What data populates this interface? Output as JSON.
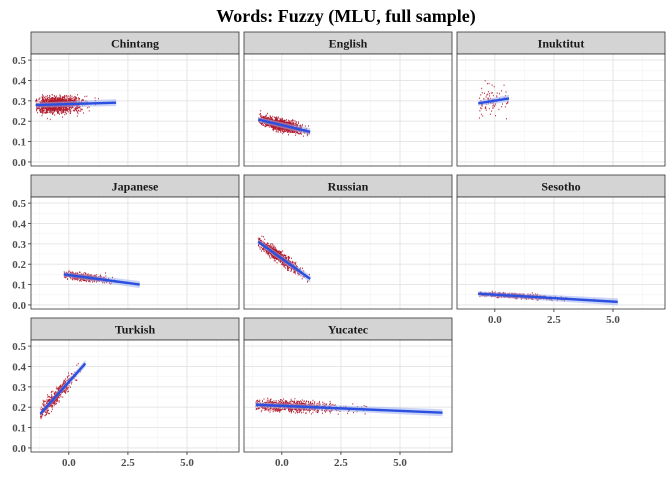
{
  "chart_data": {
    "type": "scatter",
    "title": "Words: Fuzzy (MLU, full sample)",
    "xlabel": "",
    "ylabel": "",
    "x_ticks": [
      0.0,
      2.5,
      5.0
    ],
    "x_tick_labels": [
      "0.0",
      "2.5",
      "5.0"
    ],
    "y_ticks": [
      0.0,
      0.1,
      0.2,
      0.3,
      0.4,
      0.5
    ],
    "y_tick_labels": [
      "0.0",
      "0.1",
      "0.2",
      "0.3",
      "0.4",
      "0.5"
    ],
    "xlim": [
      -1.6,
      7.2
    ],
    "ylim": [
      -0.02,
      0.53
    ],
    "grid": true,
    "colors": {
      "points": "#b2182b",
      "fit": "#2b50e0",
      "ribbon": "#9fb0f0",
      "strip": "#d4d4d4"
    },
    "panels": [
      {
        "name": "Chintang",
        "fit": {
          "x": [
            -1.4,
            2.0
          ],
          "y": [
            0.279,
            0.291
          ]
        },
        "cloud": {
          "x_center": -0.5,
          "x_spread": 0.5,
          "x_min": -1.4,
          "x_max": 1.8,
          "y_spread": 0.018,
          "n": 1500
        }
      },
      {
        "name": "English",
        "fit": {
          "x": [
            -1.0,
            1.2
          ],
          "y": [
            0.208,
            0.148
          ]
        },
        "cloud": {
          "x_center": 0.0,
          "x_spread": 0.45,
          "x_min": -1.0,
          "x_max": 1.2,
          "y_spread": 0.013,
          "n": 1500
        }
      },
      {
        "name": "Inuktitut",
        "fit": {
          "x": [
            -0.7,
            0.6
          ],
          "y": [
            0.288,
            0.312
          ]
        },
        "cloud": {
          "x_center": -0.1,
          "x_spread": 0.4,
          "x_min": -0.7,
          "x_max": 0.6,
          "y_spread": 0.035,
          "n": 90
        }
      },
      {
        "name": "Japanese",
        "fit": {
          "x": [
            -0.2,
            3.0
          ],
          "y": [
            0.15,
            0.1
          ]
        },
        "cloud": {
          "x_center": 0.6,
          "x_spread": 0.5,
          "x_min": -0.2,
          "x_max": 3.0,
          "y_spread": 0.008,
          "n": 600
        }
      },
      {
        "name": "Russian",
        "fit": {
          "x": [
            -1.0,
            1.2
          ],
          "y": [
            0.31,
            0.128
          ]
        },
        "cloud": {
          "x_center": -0.1,
          "x_spread": 0.5,
          "x_min": -1.0,
          "x_max": 1.2,
          "y_spread": 0.014,
          "n": 900
        }
      },
      {
        "name": "Sesotho",
        "fit": {
          "x": [
            -0.7,
            5.2
          ],
          "y": [
            0.055,
            0.015
          ]
        },
        "cloud": {
          "x_center": 0.8,
          "x_spread": 0.9,
          "x_min": -0.7,
          "x_max": 5.2,
          "y_spread": 0.005,
          "n": 800
        }
      },
      {
        "name": "Turkish",
        "fit": {
          "x": [
            -1.2,
            0.7
          ],
          "y": [
            0.168,
            0.415
          ]
        },
        "cloud": {
          "x_center": -0.6,
          "x_spread": 0.4,
          "x_min": -1.2,
          "x_max": 0.7,
          "y_spread": 0.018,
          "n": 500
        }
      },
      {
        "name": "Yucatec",
        "fit": {
          "x": [
            -1.1,
            6.8
          ],
          "y": [
            0.212,
            0.173
          ]
        },
        "cloud": {
          "x_center": 0.3,
          "x_spread": 0.9,
          "x_min": -1.1,
          "x_max": 6.8,
          "y_spread": 0.013,
          "n": 900
        }
      }
    ]
  }
}
